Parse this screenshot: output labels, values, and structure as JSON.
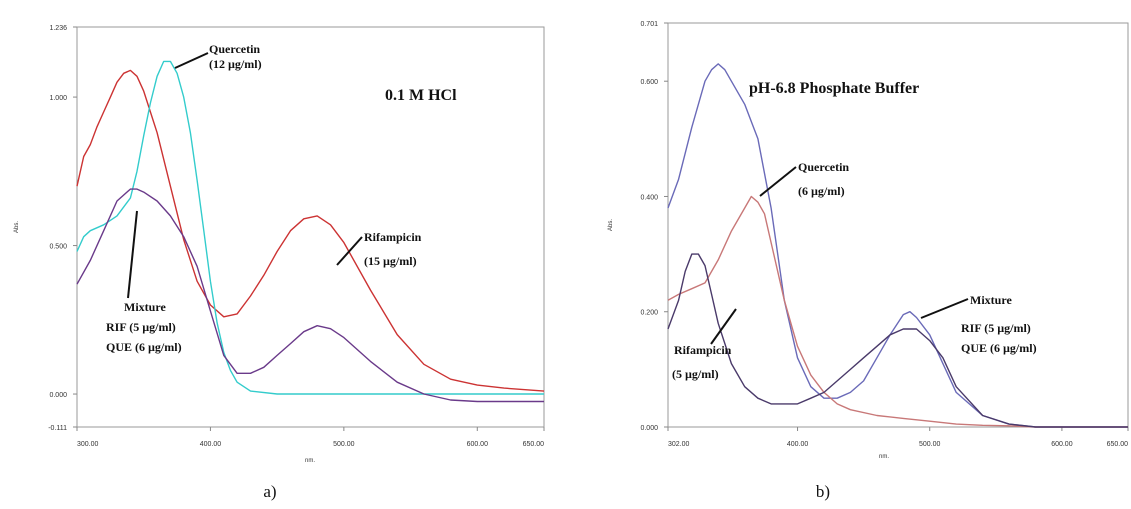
{
  "chart_data": [
    {
      "type": "line",
      "xlabel": "nm.",
      "ylabel": "Abs.",
      "xlim": [
        300,
        650
      ],
      "ylim": [
        -0.111,
        1.236
      ],
      "x_ticks": [
        "300.00",
        "400.00",
        "500.00",
        "600.00",
        "650.00"
      ],
      "y_ticks": [
        "-0.111",
        "0.000",
        "0.500",
        "1.000",
        "1.236"
      ],
      "condition_label": "0.1 M HCl",
      "caption": "a)",
      "annotations": [
        {
          "lines": [
            "Quercetin",
            "(12 µg/ml)"
          ]
        },
        {
          "lines": [
            "Rifampicin",
            "(15 µg/ml)"
          ]
        },
        {
          "lines": [
            "Mixture",
            "RIF (5 µg/ml)",
            "QUE (6 µg/ml)"
          ]
        }
      ],
      "series": [
        {
          "color": "#cc3333",
          "x": [
            300,
            305,
            310,
            315,
            320,
            325,
            330,
            335,
            340,
            345,
            350,
            360,
            370,
            380,
            390,
            400,
            410,
            420,
            430,
            440,
            450,
            460,
            470,
            480,
            490,
            500,
            520,
            540,
            560,
            580,
            600,
            620,
            650
          ],
          "y": [
            0.7,
            0.8,
            0.84,
            0.9,
            0.95,
            1.0,
            1.05,
            1.08,
            1.09,
            1.07,
            1.02,
            0.88,
            0.7,
            0.52,
            0.38,
            0.3,
            0.26,
            0.27,
            0.33,
            0.4,
            0.48,
            0.55,
            0.59,
            0.6,
            0.57,
            0.51,
            0.35,
            0.2,
            0.1,
            0.05,
            0.03,
            0.02,
            0.01
          ]
        },
        {
          "color": "#33cccc",
          "x": [
            300,
            305,
            310,
            320,
            330,
            340,
            345,
            350,
            355,
            360,
            365,
            370,
            375,
            380,
            385,
            390,
            395,
            400,
            405,
            410,
            415,
            420,
            430,
            450,
            500,
            550,
            600,
            650
          ],
          "y": [
            0.48,
            0.53,
            0.55,
            0.57,
            0.6,
            0.66,
            0.75,
            0.87,
            0.98,
            1.07,
            1.12,
            1.12,
            1.08,
            1.0,
            0.88,
            0.72,
            0.55,
            0.38,
            0.24,
            0.14,
            0.08,
            0.04,
            0.01,
            0.0,
            0.0,
            0.0,
            0.0,
            0.0
          ]
        },
        {
          "color": "#6a3a8a",
          "x": [
            300,
            310,
            320,
            330,
            340,
            345,
            350,
            360,
            370,
            380,
            390,
            400,
            410,
            420,
            430,
            440,
            450,
            460,
            470,
            480,
            490,
            500,
            520,
            540,
            560,
            580,
            600,
            620,
            650
          ],
          "y": [
            0.37,
            0.45,
            0.55,
            0.65,
            0.69,
            0.69,
            0.68,
            0.65,
            0.6,
            0.53,
            0.43,
            0.28,
            0.13,
            0.07,
            0.07,
            0.09,
            0.13,
            0.17,
            0.21,
            0.23,
            0.22,
            0.19,
            0.11,
            0.04,
            0.0,
            -0.02,
            -0.025,
            -0.025,
            -0.025
          ]
        }
      ]
    },
    {
      "type": "line",
      "xlabel": "nm.",
      "ylabel": "Abs.",
      "xlim": [
        302,
        650
      ],
      "ylim": [
        0,
        0.701
      ],
      "x_ticks": [
        "302.00",
        "400.00",
        "500.00",
        "600.00",
        "650.00"
      ],
      "y_ticks": [
        "0.000",
        "0.200",
        "0.400",
        "0.600",
        "0.701"
      ],
      "condition_label": "pH-6.8 Phosphate Buffer",
      "caption": "b)",
      "annotations": [
        {
          "lines": [
            "Quercetin",
            "(6 µg/ml)"
          ]
        },
        {
          "lines": [
            "Rifampicin",
            "(5 µg/ml)"
          ]
        },
        {
          "lines": [
            "Mixture",
            "RIF (5 µg/ml)",
            "QUE (6 µg/ml)"
          ]
        }
      ],
      "series": [
        {
          "color": "#6a6ab8",
          "x": [
            302,
            310,
            320,
            330,
            335,
            340,
            345,
            350,
            360,
            370,
            380,
            390,
            400,
            410,
            420,
            430,
            440,
            450,
            460,
            470,
            480,
            485,
            490,
            500,
            510,
            520,
            540,
            560,
            580,
            600,
            620,
            650
          ],
          "y": [
            0.38,
            0.43,
            0.52,
            0.6,
            0.62,
            0.63,
            0.62,
            0.6,
            0.56,
            0.5,
            0.38,
            0.22,
            0.12,
            0.07,
            0.05,
            0.05,
            0.06,
            0.08,
            0.12,
            0.16,
            0.195,
            0.2,
            0.19,
            0.16,
            0.11,
            0.06,
            0.02,
            0.005,
            0.0,
            0.0,
            0.0,
            0.0
          ]
        },
        {
          "color": "#c87878",
          "x": [
            302,
            310,
            320,
            330,
            340,
            350,
            360,
            365,
            370,
            375,
            380,
            390,
            400,
            410,
            420,
            430,
            440,
            460,
            480,
            500,
            520,
            540,
            560,
            580,
            600,
            620,
            650
          ],
          "y": [
            0.22,
            0.23,
            0.24,
            0.25,
            0.29,
            0.34,
            0.38,
            0.4,
            0.39,
            0.37,
            0.32,
            0.22,
            0.14,
            0.09,
            0.06,
            0.04,
            0.03,
            0.02,
            0.015,
            0.01,
            0.005,
            0.003,
            0.002,
            0.0,
            0.0,
            0.0,
            0.0
          ]
        },
        {
          "color": "#4a3a6a",
          "x": [
            302,
            310,
            315,
            320,
            325,
            330,
            335,
            340,
            350,
            360,
            370,
            380,
            390,
            400,
            410,
            420,
            430,
            440,
            450,
            460,
            470,
            480,
            490,
            500,
            510,
            520,
            540,
            560,
            580,
            600,
            620,
            650
          ],
          "y": [
            0.17,
            0.22,
            0.27,
            0.3,
            0.3,
            0.28,
            0.23,
            0.18,
            0.11,
            0.07,
            0.05,
            0.04,
            0.04,
            0.04,
            0.05,
            0.06,
            0.08,
            0.1,
            0.12,
            0.14,
            0.16,
            0.17,
            0.17,
            0.15,
            0.12,
            0.07,
            0.02,
            0.005,
            0.0,
            0.0,
            0.0,
            0.0
          ]
        }
      ]
    }
  ]
}
